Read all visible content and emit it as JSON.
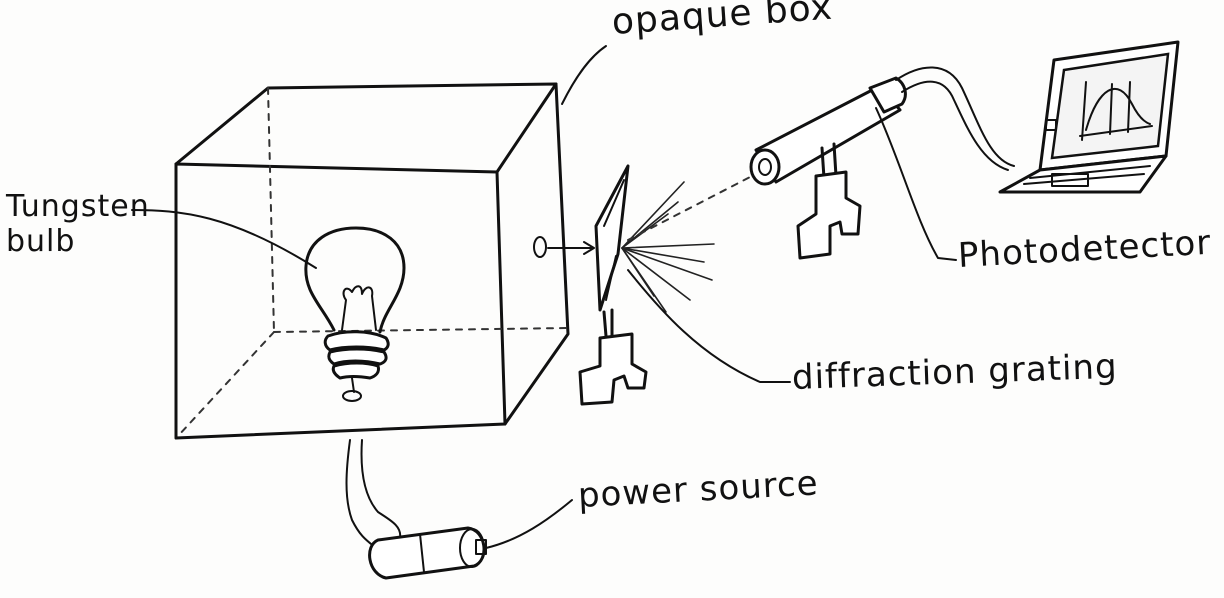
{
  "labels": {
    "opaque_box": "opaque box",
    "tungsten_bulb_line1": "Tungsten",
    "tungsten_bulb_line2": "bulb",
    "photodetector": "Photodetector",
    "diffraction_grating": "diffraction grating",
    "power_source": "power source"
  },
  "icons": {
    "bulb": "lightbulb-icon",
    "battery": "battery-icon",
    "laptop": "laptop-icon",
    "detector": "photodetector-icon",
    "grating": "diffraction-grating-icon"
  },
  "colors": {
    "ink": "#111111",
    "paper": "#fdfdfc"
  }
}
